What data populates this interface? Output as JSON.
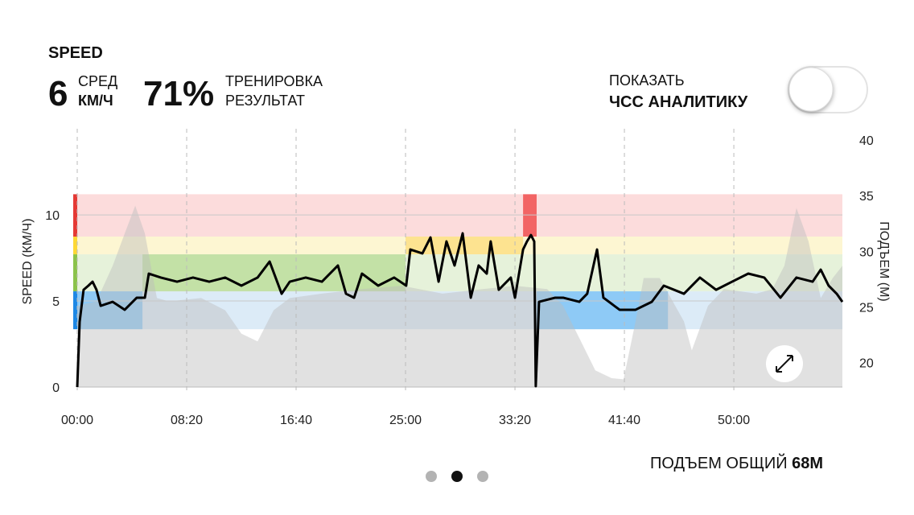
{
  "header": {
    "title": "SPEED",
    "avg_value": "6",
    "avg_label": "СРЕД",
    "avg_unit": "КМ/Ч",
    "result_value": "71%",
    "result_label_1": "ТРЕНИРОВКА",
    "result_label_2": "РЕЗУЛЬТАТ"
  },
  "toggle": {
    "label_1": "ПОКАЗАТЬ",
    "label_2": "ЧСС АНАЛИТИКУ",
    "on": false
  },
  "chart_data": {
    "type": "line",
    "y_label": "SPEED (КМ/Ч)",
    "y2_label": "ПОДЪЕМ (М)",
    "xlim": [
      0,
      3496
    ],
    "xticks": [
      {
        "value": 0,
        "label": "00:00"
      },
      {
        "value": 500,
        "label": "08:20"
      },
      {
        "value": 1000,
        "label": "16:40"
      },
      {
        "value": 1500,
        "label": "25:00"
      },
      {
        "value": 2000,
        "label": "33:20"
      },
      {
        "value": 2500,
        "label": "41:40"
      },
      {
        "value": 3000,
        "label": "50:00"
      }
    ],
    "ylim": [
      0,
      14.35
    ],
    "yticks": [
      0,
      5,
      10
    ],
    "y2lim": [
      17.8,
      40
    ],
    "y2ticks": [
      20,
      25,
      30,
      35,
      40
    ],
    "grid": true,
    "zones": [
      {
        "from": 8.74,
        "to": 11.2,
        "color": "#e53935",
        "light": "#fcdcdc",
        "strong": "#f26464"
      },
      {
        "from": 7.71,
        "to": 8.74,
        "color": "#fdd835",
        "light": "#fdf6d2",
        "strong": "#fde390"
      },
      {
        "from": 5.56,
        "to": 7.71,
        "color": "#8bc34a",
        "light": "#e6f2da",
        "strong": "#c3e1a6"
      },
      {
        "from": 3.36,
        "to": 5.56,
        "color": "#1e88e5",
        "light": "#dcebf7",
        "strong": "#8ecaf6"
      }
    ],
    "zone_segments": [
      {
        "start": 0,
        "end": 298,
        "zone": 3
      },
      {
        "start": 298,
        "end": 1500,
        "zone": 2
      },
      {
        "start": 1500,
        "end": 2037,
        "zone": 1
      },
      {
        "start": 2037,
        "end": 2099,
        "zone": 0
      },
      {
        "start": 2099,
        "end": 2699,
        "zone": 3
      }
    ],
    "elevation": {
      "axis": "y2",
      "color": "#bdbdbd",
      "x": [
        0,
        88,
        162,
        217,
        265,
        309,
        364,
        419,
        566,
        676,
        750,
        824,
        897,
        971,
        1118,
        1301,
        1485,
        1669,
        1853,
        2000,
        2147,
        2220,
        2294,
        2367,
        2441,
        2496,
        2551,
        2588,
        2661,
        2772,
        2808,
        2882,
        2955,
        3103,
        3176,
        3231,
        3286,
        3341,
        3397,
        3452,
        3496
      ],
      "values": [
        25.1,
        25.5,
        28.7,
        31.6,
        34.1,
        31.6,
        25.8,
        25.5,
        25.8,
        24.7,
        22.6,
        21.9,
        24.7,
        25.8,
        26.2,
        26.6,
        26.9,
        26.2,
        26.6,
        26.9,
        26.6,
        25.1,
        22.2,
        19.3,
        18.6,
        18.5,
        23.7,
        27.6,
        27.6,
        23.7,
        21.1,
        25.1,
        26.6,
        26.2,
        26.6,
        28.7,
        33.9,
        30.9,
        25.8,
        27.6,
        28.7
      ]
    },
    "speed": {
      "color": "#000000",
      "x": [
        0,
        11,
        29,
        51,
        70,
        88,
        107,
        162,
        217,
        272,
        309,
        327,
        382,
        456,
        529,
        603,
        676,
        750,
        824,
        879,
        934,
        971,
        1044,
        1118,
        1191,
        1228,
        1265,
        1301,
        1375,
        1448,
        1503,
        1522,
        1577,
        1614,
        1651,
        1687,
        1724,
        1761,
        1798,
        1834,
        1871,
        1889,
        1926,
        1981,
        2000,
        2037,
        2055,
        2073,
        2088,
        2095,
        2110,
        2184,
        2220,
        2294,
        2330,
        2375,
        2404,
        2478,
        2551,
        2625,
        2680,
        2772,
        2845,
        2919,
        2992,
        3066,
        3139,
        3213,
        3286,
        3360,
        3397,
        3433,
        3470,
        3496
      ],
      "values": [
        0,
        3.79,
        5.65,
        5.89,
        6.12,
        5.65,
        4.72,
        4.95,
        4.49,
        5.19,
        5.19,
        6.59,
        6.36,
        6.12,
        6.36,
        6.12,
        6.36,
        5.89,
        6.36,
        7.29,
        5.42,
        6.12,
        6.36,
        6.12,
        7.06,
        5.42,
        5.19,
        6.59,
        5.89,
        6.36,
        5.89,
        7.99,
        7.76,
        8.69,
        6.12,
        8.46,
        7.06,
        8.93,
        5.19,
        7.06,
        6.59,
        8.46,
        5.65,
        6.36,
        5.19,
        7.99,
        8.46,
        8.83,
        8.46,
        0.05,
        4.95,
        5.19,
        5.19,
        4.95,
        5.42,
        7.99,
        5.19,
        4.49,
        4.49,
        4.95,
        5.89,
        5.42,
        6.36,
        5.65,
        6.12,
        6.59,
        6.36,
        5.19,
        6.36,
        6.12,
        6.82,
        5.89,
        5.42,
        4.95
      ]
    }
  },
  "footer": {
    "label": "ПОДЪЕМ ОБЩИЙ",
    "value": "68M"
  },
  "page_dots": {
    "count": 3,
    "active": 1
  }
}
